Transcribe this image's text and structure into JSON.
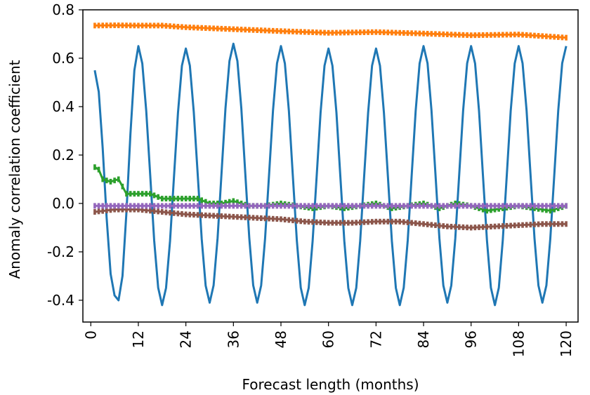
{
  "chart_data": {
    "type": "line",
    "title": "",
    "xlabel": "Forecast length (months)",
    "ylabel": "Anomaly correlation coefficient",
    "xlim": [
      -2,
      123
    ],
    "ylim": [
      -0.49,
      0.8
    ],
    "xticks": [
      0,
      12,
      24,
      36,
      48,
      60,
      72,
      84,
      96,
      108,
      120
    ],
    "xtick_labels": [
      "0",
      "12",
      "24",
      "36",
      "48",
      "60",
      "72",
      "84",
      "96",
      "108",
      "120"
    ],
    "yticks": [
      -0.4,
      -0.2,
      0.0,
      0.2,
      0.4,
      0.6,
      0.8
    ],
    "ytick_labels": [
      "-0.4",
      "-0.2",
      "0.0",
      "0.2",
      "0.4",
      "0.6",
      "0.8"
    ],
    "grid": false,
    "legend": null,
    "series": [
      {
        "color": "#1f77b4",
        "pattern": "seasonal",
        "points": [
          [
            1,
            0.55
          ],
          [
            6,
            -0.38
          ],
          [
            7,
            -0.4
          ],
          [
            12,
            0.65
          ],
          [
            18,
            -0.42
          ],
          [
            24,
            0.64
          ],
          [
            30,
            -0.41
          ],
          [
            36,
            0.66
          ],
          [
            42,
            -0.41
          ],
          [
            48,
            0.65
          ],
          [
            54,
            -0.42
          ],
          [
            60,
            0.64
          ],
          [
            66,
            -0.42
          ],
          [
            72,
            0.64
          ],
          [
            78,
            -0.42
          ],
          [
            84,
            0.65
          ],
          [
            90,
            -0.41
          ],
          [
            96,
            0.65
          ],
          [
            102,
            -0.42
          ],
          [
            108,
            0.65
          ],
          [
            114,
            -0.41
          ],
          [
            120,
            0.65
          ]
        ]
      },
      {
        "color": "#ff7f0e",
        "pattern": "interpolated",
        "points": [
          [
            1,
            0.735
          ],
          [
            6,
            0.736
          ],
          [
            12,
            0.735
          ],
          [
            18,
            0.735
          ],
          [
            24,
            0.728
          ],
          [
            36,
            0.72
          ],
          [
            48,
            0.712
          ],
          [
            60,
            0.705
          ],
          [
            72,
            0.708
          ],
          [
            84,
            0.702
          ],
          [
            96,
            0.695
          ],
          [
            108,
            0.698
          ],
          [
            120,
            0.685
          ]
        ]
      },
      {
        "color": "#2ca02c",
        "pattern": "interpolated",
        "points": [
          [
            1,
            0.15
          ],
          [
            2,
            0.14
          ],
          [
            3,
            0.1
          ],
          [
            5,
            0.09
          ],
          [
            7,
            0.1
          ],
          [
            8,
            0.07
          ],
          [
            9,
            0.04
          ],
          [
            12,
            0.04
          ],
          [
            15,
            0.04
          ],
          [
            18,
            0.02
          ],
          [
            21,
            0.02
          ],
          [
            24,
            0.02
          ],
          [
            27,
            0.02
          ],
          [
            30,
            0.0
          ],
          [
            33,
            0.0
          ],
          [
            36,
            0.01
          ],
          [
            40,
            -0.01
          ],
          [
            44,
            -0.01
          ],
          [
            48,
            0.0
          ],
          [
            52,
            -0.01
          ],
          [
            56,
            -0.02
          ],
          [
            60,
            -0.01
          ],
          [
            64,
            -0.02
          ],
          [
            68,
            -0.01
          ],
          [
            72,
            0.0
          ],
          [
            76,
            -0.02
          ],
          [
            80,
            -0.01
          ],
          [
            84,
            0.0
          ],
          [
            88,
            -0.02
          ],
          [
            92,
            0.0
          ],
          [
            96,
            -0.01
          ],
          [
            100,
            -0.03
          ],
          [
            104,
            -0.02
          ],
          [
            108,
            -0.01
          ],
          [
            112,
            -0.02
          ],
          [
            116,
            -0.03
          ],
          [
            120,
            -0.01
          ]
        ]
      },
      {
        "color": "#8c564b",
        "pattern": "interpolated",
        "points": [
          [
            1,
            -0.035
          ],
          [
            6,
            -0.025
          ],
          [
            12,
            -0.025
          ],
          [
            18,
            -0.035
          ],
          [
            24,
            -0.045
          ],
          [
            30,
            -0.05
          ],
          [
            36,
            -0.055
          ],
          [
            42,
            -0.06
          ],
          [
            48,
            -0.065
          ],
          [
            54,
            -0.075
          ],
          [
            60,
            -0.08
          ],
          [
            66,
            -0.08
          ],
          [
            72,
            -0.075
          ],
          [
            78,
            -0.075
          ],
          [
            84,
            -0.085
          ],
          [
            90,
            -0.095
          ],
          [
            96,
            -0.1
          ],
          [
            102,
            -0.095
          ],
          [
            108,
            -0.09
          ],
          [
            114,
            -0.085
          ],
          [
            120,
            -0.085
          ]
        ]
      },
      {
        "color": "#9467bd",
        "pattern": "interpolated",
        "points": [
          [
            1,
            -0.01
          ],
          [
            6,
            -0.01
          ],
          [
            12,
            -0.01
          ],
          [
            24,
            -0.01
          ],
          [
            36,
            -0.01
          ],
          [
            48,
            -0.01
          ],
          [
            60,
            -0.01
          ],
          [
            72,
            -0.01
          ],
          [
            84,
            -0.01
          ],
          [
            96,
            -0.01
          ],
          [
            108,
            -0.01
          ],
          [
            120,
            -0.01
          ]
        ]
      }
    ]
  }
}
